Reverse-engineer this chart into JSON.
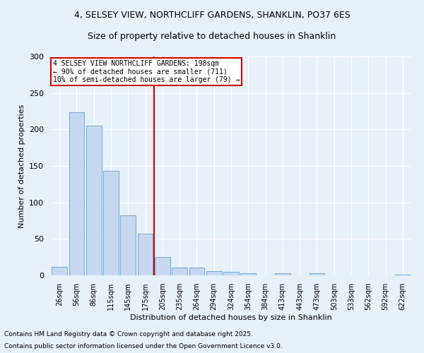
{
  "title_line1": "4, SELSEY VIEW, NORTHCLIFF GARDENS, SHANKLIN, PO37 6ES",
  "title_line2": "Size of property relative to detached houses in Shanklin",
  "xlabel": "Distribution of detached houses by size in Shanklin",
  "ylabel": "Number of detached properties",
  "bar_labels": [
    "26sqm",
    "56sqm",
    "86sqm",
    "115sqm",
    "145sqm",
    "175sqm",
    "205sqm",
    "235sqm",
    "264sqm",
    "294sqm",
    "324sqm",
    "354sqm",
    "384sqm",
    "413sqm",
    "443sqm",
    "473sqm",
    "503sqm",
    "533sqm",
    "562sqm",
    "592sqm",
    "622sqm"
  ],
  "bar_values": [
    12,
    224,
    205,
    143,
    82,
    57,
    25,
    11,
    11,
    6,
    5,
    3,
    0,
    3,
    0,
    3,
    0,
    0,
    0,
    0,
    1
  ],
  "bar_color": "#c5d8f0",
  "bar_edge_color": "#6aaed6",
  "annotation_text_line1": "4 SELSEY VIEW NORTHCLIFF GARDENS: 198sqm",
  "annotation_text_line2": "← 90% of detached houses are smaller (711)",
  "annotation_text_line3": "10% of semi-detached houses are larger (79) →",
  "annotation_box_color": "#ffffff",
  "annotation_box_edge_color": "#cc0000",
  "vline_color": "#cc0000",
  "vline_x_index": 6,
  "ylim": [
    0,
    300
  ],
  "yticks": [
    0,
    50,
    100,
    150,
    200,
    250,
    300
  ],
  "background_color": "#e8f0f8",
  "grid_color": "#ffffff",
  "footnote_line1": "Contains HM Land Registry data © Crown copyright and database right 2025.",
  "footnote_line2": "Contains public sector information licensed under the Open Government Licence v3.0."
}
